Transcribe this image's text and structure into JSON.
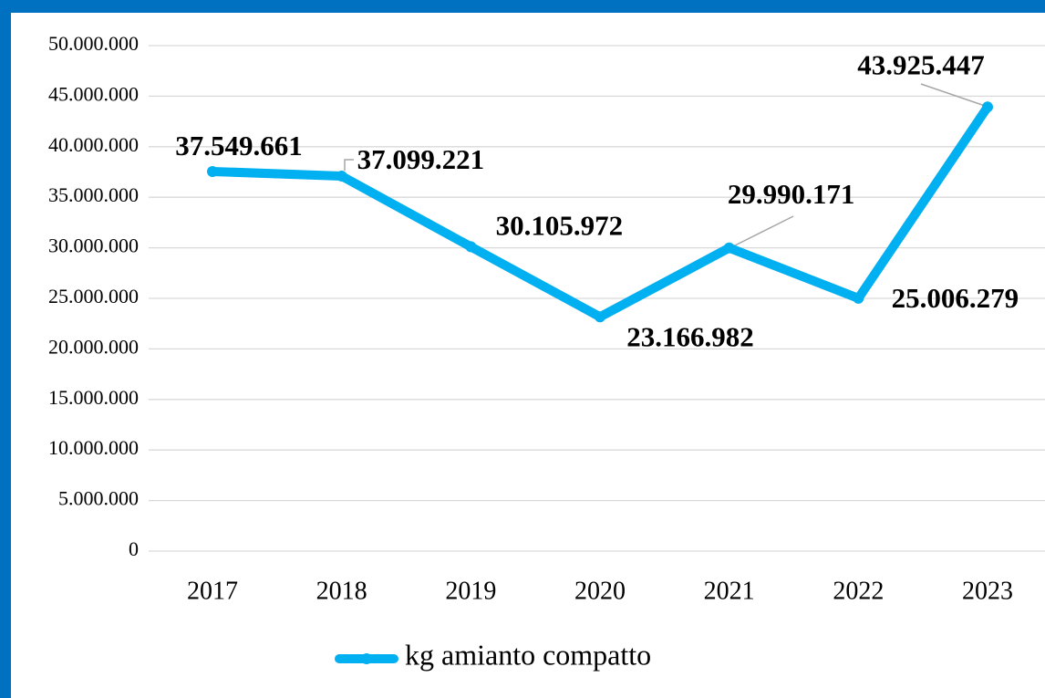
{
  "chart_data": {
    "type": "line",
    "categories": [
      "2017",
      "2018",
      "2019",
      "2020",
      "2021",
      "2022",
      "2023"
    ],
    "series": [
      {
        "name": "kg amianto compatto",
        "color": "#00b0f0",
        "values": [
          37549661,
          37099221,
          30105972,
          23166982,
          29990171,
          25006279,
          43925447
        ],
        "value_labels": [
          "37.549.661",
          "37.099.221",
          "30.105.972",
          "23.166.982",
          "29.990.171",
          "25.006.279",
          "43.925.447"
        ]
      }
    ],
    "ylim": [
      0,
      50000000
    ],
    "yticks": [
      0,
      {
        "value": 5000000,
        "label": "5.000.000"
      },
      {
        "value": 10000000,
        "label": "10.000.000"
      },
      {
        "value": 15000000,
        "label": "15.000.000"
      },
      {
        "value": 20000000,
        "label": "20.000.000"
      },
      {
        "value": 25000000,
        "label": "25.000.000"
      },
      {
        "value": 30000000,
        "label": "30.000.000"
      },
      {
        "value": 35000000,
        "label": "35.000.000"
      },
      {
        "value": 40000000,
        "label": "40.000.000"
      },
      {
        "value": 45000000,
        "label": "45.000.000"
      },
      {
        "value": 50000000,
        "label": "50.000.000"
      }
    ],
    "grid": true,
    "legend": "bottom"
  }
}
